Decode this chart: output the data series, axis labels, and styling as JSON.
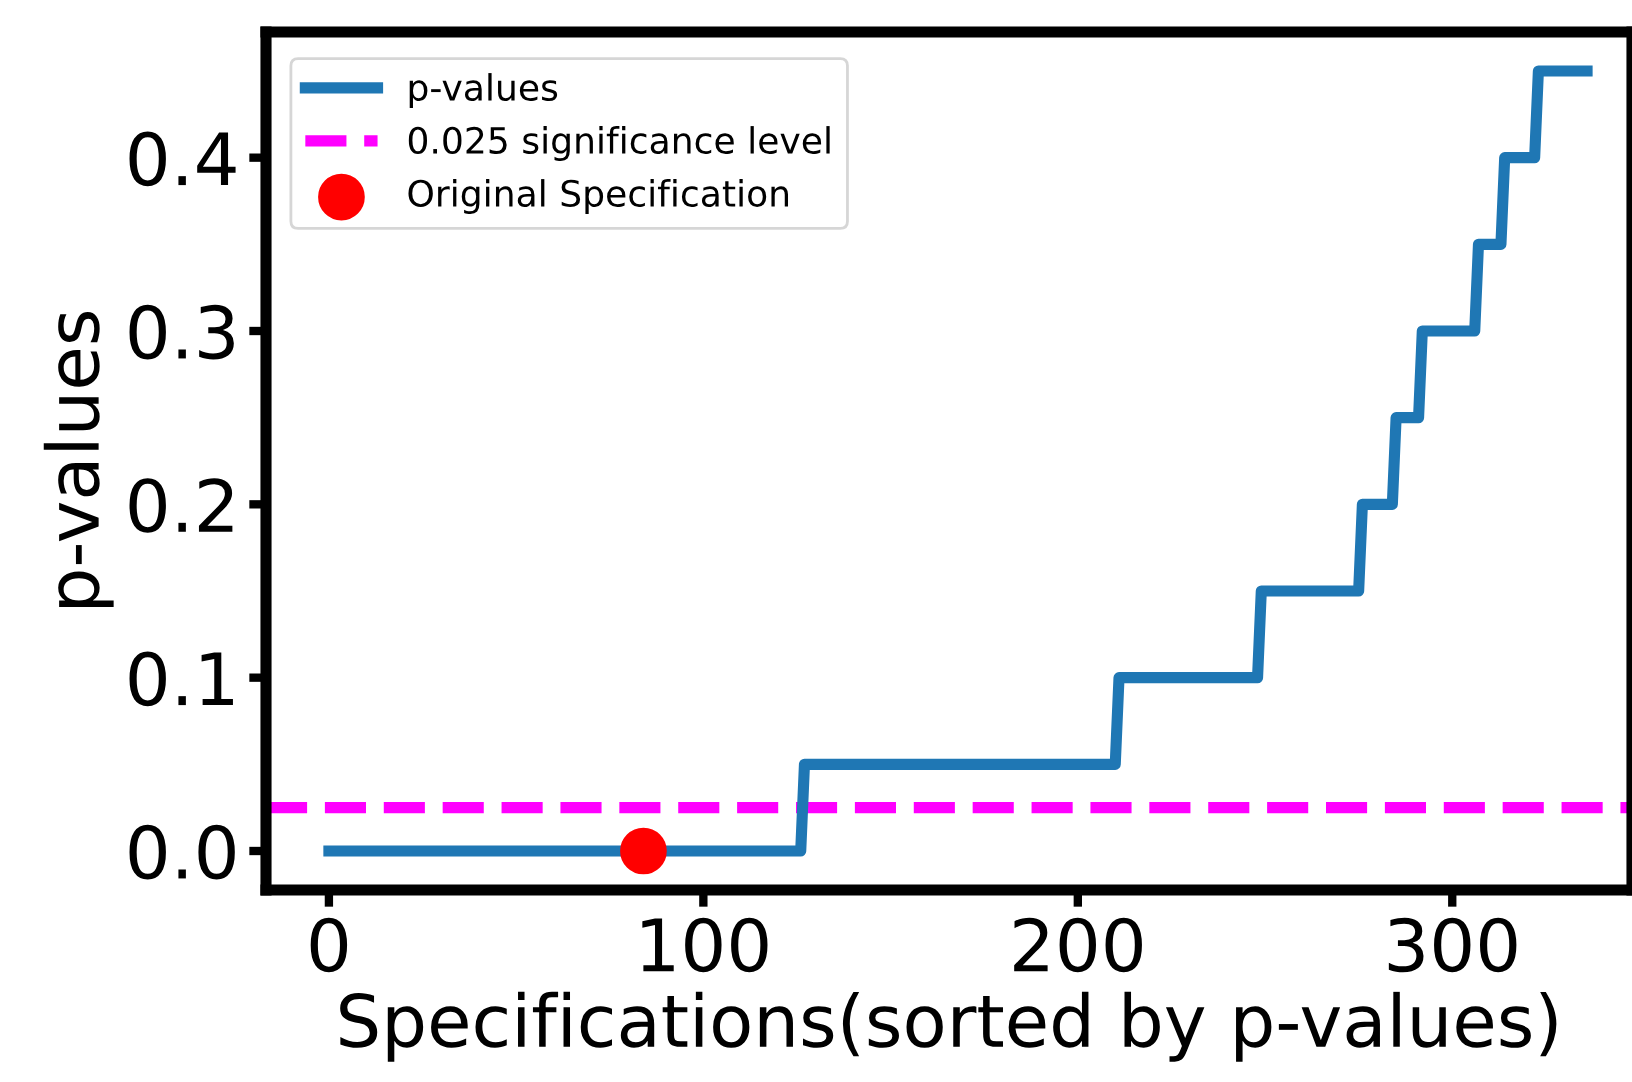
{
  "chart_data": {
    "type": "line",
    "xlabel": "Specifications(sorted by p-values)",
    "ylabel": "p-values",
    "series": [
      {
        "name": "p-values",
        "color": "#1f77b4",
        "x": [
          0,
          126,
          127,
          210,
          211,
          248,
          249,
          275,
          276,
          284,
          285,
          291,
          292,
          306,
          307,
          313,
          314,
          322,
          323,
          336
        ],
        "values": [
          0,
          0,
          0.05,
          0.05,
          0.1,
          0.1,
          0.15,
          0.15,
          0.2,
          0.2,
          0.25,
          0.25,
          0.3,
          0.3,
          0.35,
          0.35,
          0.4,
          0.4,
          0.45,
          0.45
        ]
      },
      {
        "name": "Original Specification",
        "type": "scatter",
        "color": "#ff0000",
        "x": [
          84
        ],
        "values": [
          0
        ]
      }
    ],
    "ref_lines": [
      {
        "axis": "y",
        "value": 0.025,
        "label": "0.025 significance level",
        "color": "#ff00ff",
        "line_style": "dashed"
      }
    ],
    "xlim": [
      -16.8,
      348
    ],
    "ylim": [
      -0.0225,
      0.4725
    ],
    "xticks": [
      0,
      100,
      200,
      300
    ],
    "yticks": [
      {
        "value": 0,
        "label": "0.0"
      },
      {
        "value": 0.1,
        "label": "0.1"
      },
      {
        "value": 0.2,
        "label": "0.2"
      },
      {
        "value": 0.3,
        "label": "0.3"
      },
      {
        "value": 0.4,
        "label": "0.4"
      }
    ],
    "legend": "top left",
    "line_style": "solid",
    "grid": false
  }
}
